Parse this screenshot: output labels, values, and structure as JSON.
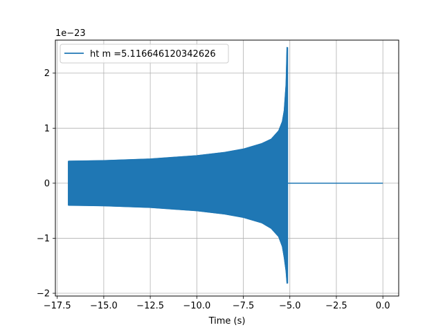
{
  "chart_data": {
    "type": "line",
    "title": "",
    "xlabel": "Time (s)",
    "ylabel": "",
    "y_offset_label": "1e−23",
    "xlim": [
      -17.6,
      0.85
    ],
    "ylim": [
      -2.05,
      2.6
    ],
    "xticks": [
      -17.5,
      -15.0,
      -12.5,
      -10.0,
      -7.5,
      -5.0,
      -2.5,
      0.0
    ],
    "xtick_labels": [
      "−17.5",
      "−15.0",
      "−12.5",
      "−10.0",
      "−7.5",
      "−5.0",
      "−2.5",
      "0.0"
    ],
    "yticks": [
      -2,
      -1,
      0,
      1,
      2
    ],
    "ytick_labels": [
      "−2",
      "−1",
      "0",
      "1",
      "2"
    ],
    "grid": true,
    "legend_position": "top-left",
    "series": [
      {
        "name": "ht m =5.116646120342626",
        "color": "#1f77b4",
        "signal_start_time": -16.9,
        "merger_time": -5.12,
        "end_time": 0.0,
        "envelope": {
          "time": [
            -16.9,
            -15.0,
            -12.5,
            -10.0,
            -8.5,
            -7.5,
            -6.5,
            -6.0,
            -5.6,
            -5.4,
            -5.3,
            -5.2,
            -5.15
          ],
          "upper": [
            0.4,
            0.41,
            0.44,
            0.5,
            0.56,
            0.62,
            0.72,
            0.8,
            0.95,
            1.12,
            1.32,
            1.8,
            2.47
          ],
          "lower": [
            -0.4,
            -0.41,
            -0.44,
            -0.5,
            -0.56,
            -0.62,
            -0.72,
            -0.82,
            -0.97,
            -1.15,
            -1.35,
            -1.6,
            -1.82
          ]
        },
        "post_merger_value": 0.0
      }
    ]
  }
}
